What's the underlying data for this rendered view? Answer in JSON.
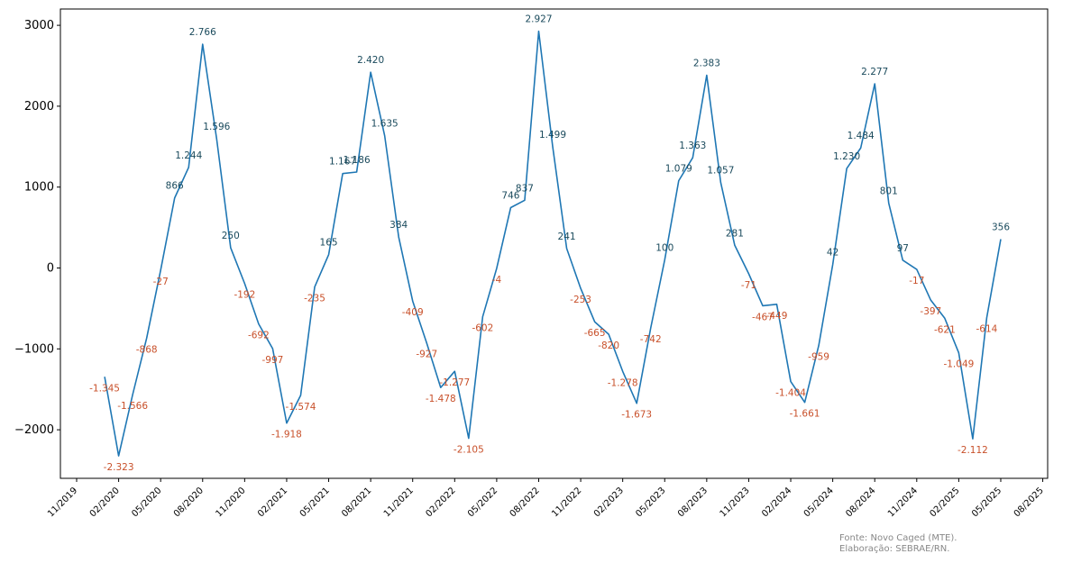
{
  "chart_data": {
    "type": "line",
    "title": "",
    "xlabel": "",
    "ylabel": "",
    "ylim": [
      -2600,
      3200
    ],
    "yticks": [
      -2000,
      -1000,
      0,
      1000,
      2000,
      3000
    ],
    "ytick_labels": [
      "−2000",
      "−1000",
      "0",
      "1000",
      "2000",
      "3000"
    ],
    "xticks": [
      "2019-11",
      "2020-02",
      "2020-05",
      "2020-08",
      "2020-11",
      "2021-02",
      "2021-05",
      "2021-08",
      "2021-11",
      "2022-02",
      "2022-05",
      "2022-08",
      "2022-11",
      "2023-02",
      "2023-05",
      "2023-08",
      "2023-11",
      "2024-02",
      "2024-05",
      "2024-08",
      "2024-11",
      "2025-02",
      "2025-05",
      "2025-08"
    ],
    "xtick_labels": [
      "11/2019",
      "02/2020",
      "05/2020",
      "08/2020",
      "11/2020",
      "02/2021",
      "05/2021",
      "08/2021",
      "11/2021",
      "02/2022",
      "05/2022",
      "08/2022",
      "11/2022",
      "02/2023",
      "05/2023",
      "08/2023",
      "11/2023",
      "02/2024",
      "05/2024",
      "08/2024",
      "11/2024",
      "02/2025",
      "05/2025",
      "08/2025"
    ],
    "positive_color": "#1a4a5c",
    "negative_color": "#c8502a",
    "line_color": "#1f77b4",
    "grid": false,
    "series": [
      {
        "x": [
          "2020-01",
          "2020-02",
          "2020-03",
          "2020-04",
          "2020-05",
          "2020-06",
          "2020-07",
          "2020-08",
          "2020-09",
          "2020-10",
          "2020-11",
          "2020-12",
          "2021-01",
          "2021-02",
          "2021-03",
          "2021-04",
          "2021-05",
          "2021-06",
          "2021-07",
          "2021-08",
          "2021-09",
          "2021-10",
          "2021-11",
          "2021-12",
          "2022-01",
          "2022-02",
          "2022-03",
          "2022-04",
          "2022-05",
          "2022-06",
          "2022-07",
          "2022-08",
          "2022-09",
          "2022-10",
          "2022-11",
          "2022-12",
          "2023-01",
          "2023-02",
          "2023-03",
          "2023-04",
          "2023-05",
          "2023-06",
          "2023-07",
          "2023-08",
          "2023-09",
          "2023-10",
          "2023-11",
          "2023-12",
          "2024-01",
          "2024-02",
          "2024-03",
          "2024-04",
          "2024-05",
          "2024-06",
          "2024-07",
          "2024-08",
          "2024-09",
          "2024-10",
          "2024-11",
          "2024-12",
          "2025-01",
          "2025-02",
          "2025-03",
          "2025-04",
          "2025-05"
        ],
        "values": [
          -1345,
          -2323,
          -1566,
          -868,
          -27,
          866,
          1244,
          2766,
          1596,
          250,
          -192,
          -692,
          -997,
          -1918,
          -1574,
          -235,
          165,
          1167,
          1186,
          2420,
          1635,
          384,
          -409,
          -927,
          -1478,
          -1277,
          -2105,
          -602,
          -4,
          746,
          837,
          2927,
          1499,
          241,
          -253,
          -665,
          -820,
          -1278,
          -1673,
          -742,
          100,
          1079,
          1363,
          2383,
          1057,
          281,
          -71,
          -467,
          -449,
          -1404,
          -1661,
          -959,
          42,
          1230,
          1484,
          2277,
          801,
          97,
          -17,
          -397,
          -621,
          -1049,
          -2112,
          -614,
          356
        ],
        "labels": [
          "-1.345",
          "-2.323",
          "-1.566",
          "-868",
          "-27",
          "866",
          "1.244",
          "2.766",
          "1.596",
          "250",
          "-192",
          "-692",
          "-997",
          "-1.918",
          "-1.574",
          "-235",
          "165",
          "1.167",
          "1.186",
          "2.420",
          "1.635",
          "384",
          "-409",
          "-927",
          "-1.478",
          "-1.277",
          "-2.105",
          "-602",
          "-4",
          "746",
          "837",
          "2.927",
          "1.499",
          "241",
          "-253",
          "-665",
          "-820",
          "-1.278",
          "-1.673",
          "-742",
          "100",
          "1.079",
          "1.363",
          "2.383",
          "1.057",
          "281",
          "-71",
          "-467",
          "-449",
          "-1.404",
          "-1.661",
          "-959",
          "42",
          "1.230",
          "1.484",
          "2.277",
          "801",
          "97",
          "-17",
          "-397",
          "-621",
          "-1.049",
          "-2.112",
          "-614",
          "356"
        ]
      }
    ]
  },
  "source_line1": "Fonte: Novo Caged (MTE).",
  "source_line2": "Elaboração: SEBRAE/RN."
}
